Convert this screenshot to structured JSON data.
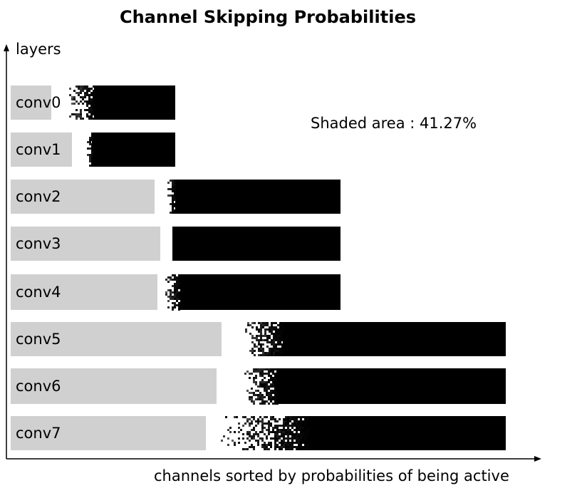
{
  "chart_data": {
    "type": "bar",
    "title": "Channel Skipping Probabilities",
    "ylabel": "layers",
    "xlabel": "channels sorted by probabilities of being active",
    "annotation": "Shaded area : 41.27%",
    "colors": {
      "skipped": "#d0d0d0",
      "active": "#000000",
      "background": "#ffffff"
    },
    "categories": [
      "conv0",
      "conv1",
      "conv2",
      "conv3",
      "conv4",
      "conv5",
      "conv6",
      "conv7"
    ],
    "series": [
      {
        "values": [
          57,
          86,
          202,
          210,
          206,
          296,
          289,
          274
        ]
      },
      {
        "values": [
          231,
          231,
          463,
          463,
          463,
          695,
          695,
          695
        ]
      }
    ]
  }
}
